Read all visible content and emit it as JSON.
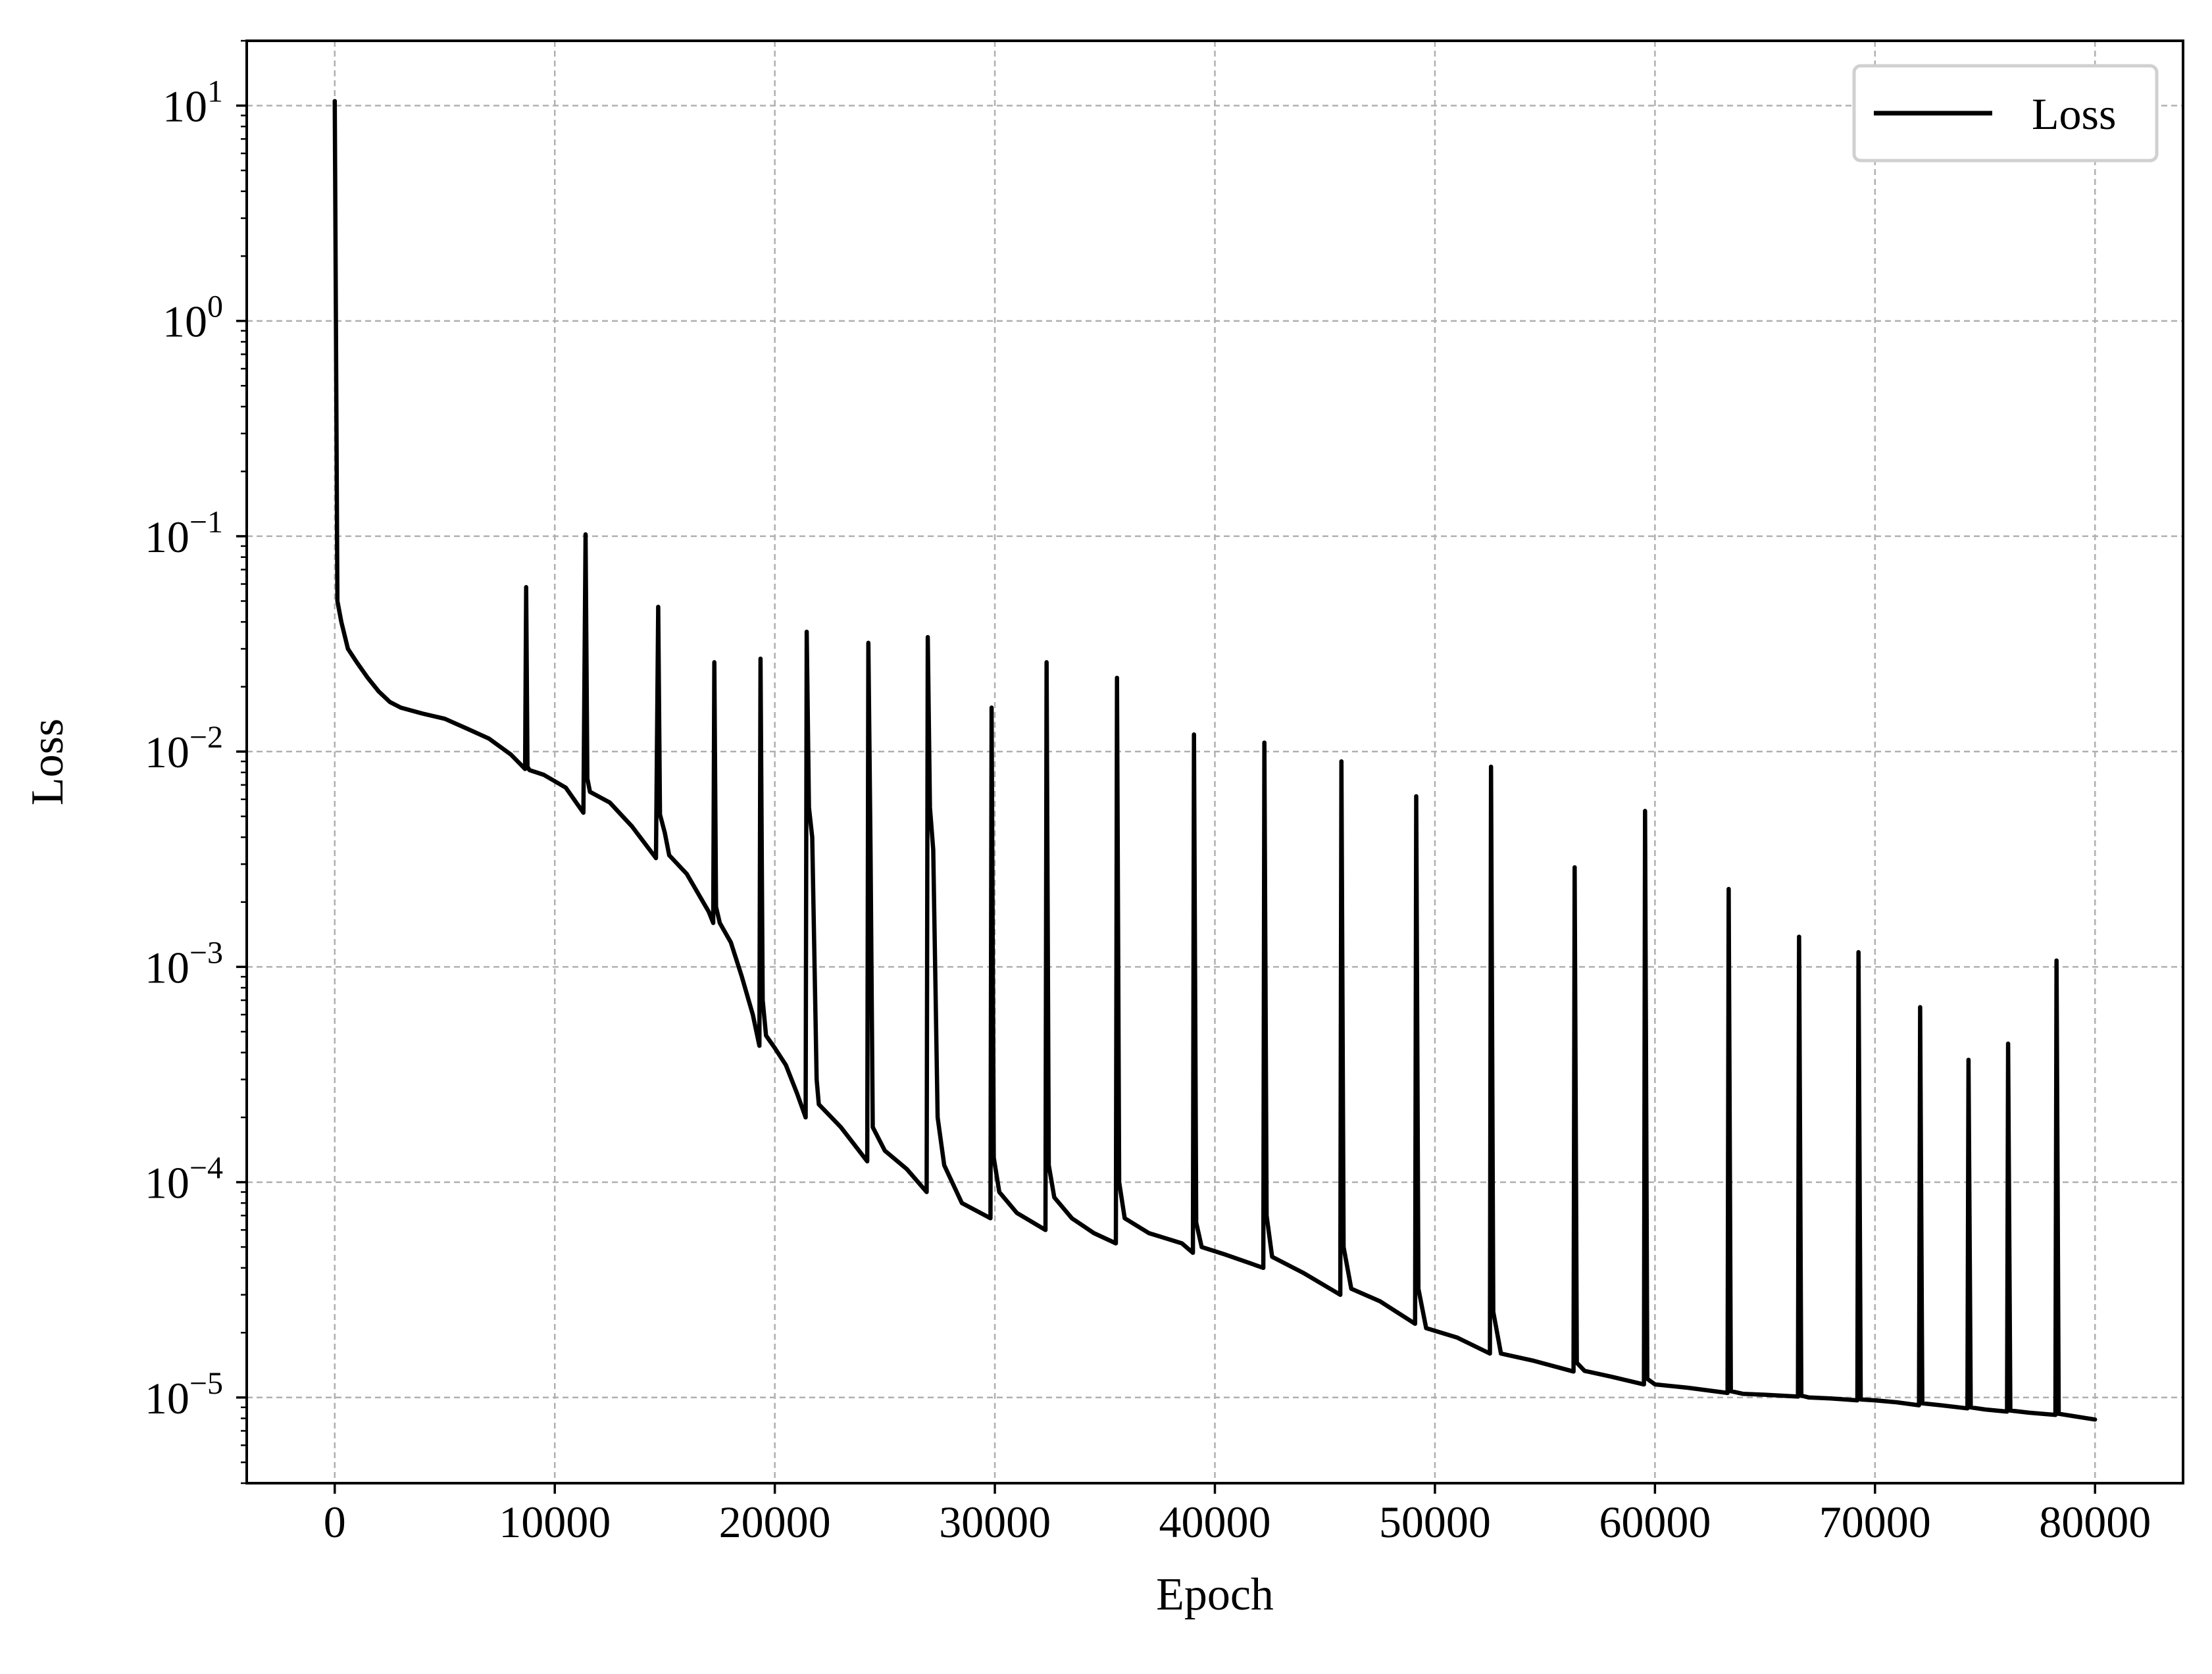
{
  "chart_data": {
    "type": "line",
    "xlabel": "Epoch",
    "ylabel": "Loss",
    "xlim": [
      -4000,
      84000
    ],
    "ylim": [
      4e-06,
      20
    ],
    "yscale": "log",
    "grid": true,
    "legend": {
      "position": "top-right",
      "entries": [
        "Loss"
      ]
    },
    "x_ticks": [
      0,
      10000,
      20000,
      30000,
      40000,
      50000,
      60000,
      70000,
      80000
    ],
    "x_tick_labels": [
      "0",
      "10000",
      "20000",
      "30000",
      "40000",
      "50000",
      "60000",
      "70000",
      "80000"
    ],
    "y_ticks": [
      {
        "value": 1e-05,
        "base": "10",
        "exp": "−5"
      },
      {
        "value": 0.0001,
        "base": "10",
        "exp": "−4"
      },
      {
        "value": 0.001,
        "base": "10",
        "exp": "−3"
      },
      {
        "value": 0.01,
        "base": "10",
        "exp": "−2"
      },
      {
        "value": 0.1,
        "base": "10",
        "exp": "−1"
      },
      {
        "value": 1,
        "base": "10",
        "exp": "0"
      },
      {
        "value": 10,
        "base": "10",
        "exp": "1"
      }
    ],
    "series": [
      {
        "name": "Loss",
        "color": "#000000",
        "points": [
          [
            0,
            10.5
          ],
          [
            120,
            0.05
          ],
          [
            300,
            0.04
          ],
          [
            600,
            0.03
          ],
          [
            1000,
            0.026
          ],
          [
            1500,
            0.022
          ],
          [
            2000,
            0.019
          ],
          [
            2500,
            0.017
          ],
          [
            3000,
            0.016
          ],
          [
            4000,
            0.015
          ],
          [
            5000,
            0.0142
          ],
          [
            6000,
            0.0128
          ],
          [
            7000,
            0.0115
          ],
          [
            8000,
            0.0097
          ],
          [
            8650,
            0.0083
          ],
          [
            8700,
            0.058
          ],
          [
            8760,
            0.0085
          ],
          [
            8850,
            0.0082
          ],
          [
            9500,
            0.0078
          ],
          [
            10500,
            0.0068
          ],
          [
            11300,
            0.0052
          ],
          [
            11400,
            0.102
          ],
          [
            11480,
            0.0075
          ],
          [
            11600,
            0.0065
          ],
          [
            12500,
            0.0058
          ],
          [
            13500,
            0.0045
          ],
          [
            14600,
            0.0032
          ],
          [
            14700,
            0.047
          ],
          [
            14780,
            0.0051
          ],
          [
            15000,
            0.0042
          ],
          [
            15200,
            0.0033
          ],
          [
            16000,
            0.0027
          ],
          [
            17000,
            0.0018
          ],
          [
            17200,
            0.0016
          ],
          [
            17250,
            0.026
          ],
          [
            17330,
            0.0019
          ],
          [
            17500,
            0.0016
          ],
          [
            18000,
            0.0013
          ],
          [
            18500,
            0.0009
          ],
          [
            19000,
            0.0006
          ],
          [
            19300,
            0.00043
          ],
          [
            19350,
            0.027
          ],
          [
            19450,
            0.0007
          ],
          [
            19600,
            0.00048
          ],
          [
            20000,
            0.00042
          ],
          [
            20500,
            0.00035
          ],
          [
            21000,
            0.00026
          ],
          [
            21400,
            0.0002
          ],
          [
            21450,
            0.036
          ],
          [
            21550,
            0.0055
          ],
          [
            21700,
            0.004
          ],
          [
            21900,
            0.0003
          ],
          [
            22000,
            0.00023
          ],
          [
            23000,
            0.00018
          ],
          [
            24200,
            0.000125
          ],
          [
            24250,
            0.032
          ],
          [
            24350,
            0.0035
          ],
          [
            24450,
            0.00018
          ],
          [
            25000,
            0.00014
          ],
          [
            26000,
            0.000115
          ],
          [
            26900,
            9e-05
          ],
          [
            26950,
            0.034
          ],
          [
            27050,
            0.0055
          ],
          [
            27200,
            0.0035
          ],
          [
            27400,
            0.0002
          ],
          [
            27700,
            0.00012
          ],
          [
            28500,
            8e-05
          ],
          [
            29800,
            6.8e-05
          ],
          [
            29850,
            0.016
          ],
          [
            29950,
            0.00013
          ],
          [
            30200,
            9e-05
          ],
          [
            31000,
            7.2e-05
          ],
          [
            32300,
            6e-05
          ],
          [
            32350,
            0.026
          ],
          [
            32450,
            0.00012
          ],
          [
            32700,
            8.5e-05
          ],
          [
            33500,
            6.8e-05
          ],
          [
            34500,
            5.8e-05
          ],
          [
            35500,
            5.2e-05
          ],
          [
            35550,
            0.022
          ],
          [
            35650,
            0.0001
          ],
          [
            35900,
            6.8e-05
          ],
          [
            37000,
            5.8e-05
          ],
          [
            38500,
            5.2e-05
          ],
          [
            39000,
            4.7e-05
          ],
          [
            39050,
            0.012
          ],
          [
            39150,
            6.5e-05
          ],
          [
            39400,
            5e-05
          ],
          [
            40500,
            4.6e-05
          ],
          [
            42200,
            4e-05
          ],
          [
            42250,
            0.011
          ],
          [
            42350,
            7e-05
          ],
          [
            42600,
            4.5e-05
          ],
          [
            44000,
            3.8e-05
          ],
          [
            45700,
            3e-05
          ],
          [
            45750,
            0.009
          ],
          [
            45850,
            5e-05
          ],
          [
            46200,
            3.2e-05
          ],
          [
            47500,
            2.8e-05
          ],
          [
            49100,
            2.2e-05
          ],
          [
            49150,
            0.0062
          ],
          [
            49250,
            3.2e-05
          ],
          [
            49600,
            2.1e-05
          ],
          [
            51000,
            1.9e-05
          ],
          [
            52500,
            1.6e-05
          ],
          [
            52550,
            0.0085
          ],
          [
            52650,
            2.5e-05
          ],
          [
            53000,
            1.6e-05
          ],
          [
            54500,
            1.48e-05
          ],
          [
            56300,
            1.32e-05
          ],
          [
            56350,
            0.0029
          ],
          [
            56450,
            1.45e-05
          ],
          [
            56800,
            1.33e-05
          ],
          [
            58000,
            1.25e-05
          ],
          [
            59500,
            1.15e-05
          ],
          [
            59550,
            0.0053
          ],
          [
            59650,
            1.22e-05
          ],
          [
            60000,
            1.15e-05
          ],
          [
            61500,
            1.11e-05
          ],
          [
            63300,
            1.05e-05
          ],
          [
            63350,
            0.0023
          ],
          [
            63450,
            1.07e-05
          ],
          [
            64000,
            1.04e-05
          ],
          [
            65000,
            1.03e-05
          ],
          [
            66500,
            1.01e-05
          ],
          [
            66550,
            0.00138
          ],
          [
            66650,
            1.02e-05
          ],
          [
            67000,
            1e-05
          ],
          [
            68000,
            9.9e-06
          ],
          [
            69200,
            9.7e-06
          ],
          [
            69250,
            0.00117
          ],
          [
            69350,
            9.8e-06
          ],
          [
            70000,
            9.7e-06
          ],
          [
            71000,
            9.5e-06
          ],
          [
            72000,
            9.2e-06
          ],
          [
            72050,
            0.00065
          ],
          [
            72150,
            9.4e-06
          ],
          [
            73000,
            9.2e-06
          ],
          [
            74200,
            8.9e-06
          ],
          [
            74250,
            0.00037
          ],
          [
            74350,
            9e-06
          ],
          [
            75000,
            8.8e-06
          ],
          [
            76000,
            8.6e-06
          ],
          [
            76050,
            0.00044
          ],
          [
            76150,
            8.7e-06
          ],
          [
            77000,
            8.5e-06
          ],
          [
            78200,
            8.3e-06
          ],
          [
            78250,
            0.00107
          ],
          [
            78350,
            8.4e-06
          ],
          [
            79000,
            8.2e-06
          ],
          [
            80000,
            7.9e-06
          ]
        ]
      }
    ]
  }
}
